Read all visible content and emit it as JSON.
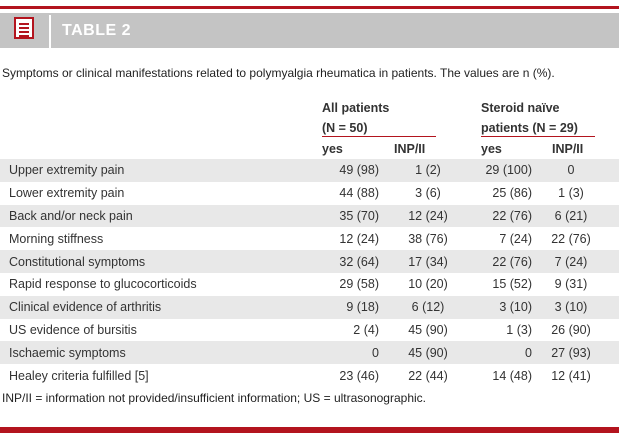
{
  "title": "TABLE 2",
  "caption": "Symptoms or clinical manifestations related to polymyalgia rheumatica in patients. The values are n (%).",
  "groups": [
    {
      "line1": "All patients",
      "line2": "(N = 50)"
    },
    {
      "line1": "Steroid naïve",
      "line2": "patients (N = 29)"
    }
  ],
  "subheaders": {
    "yes": "yes",
    "inp": "INP/II"
  },
  "rows": [
    {
      "label": "Upper extremity pain",
      "all_yes": "49 (98)",
      "all_inp": "1 (2)",
      "sn_yes": "29 (100)",
      "sn_inp": "0"
    },
    {
      "label": "Lower extremity pain",
      "all_yes": "44 (88)",
      "all_inp": "3 (6)",
      "sn_yes": "25 (86)",
      "sn_inp": "1 (3)"
    },
    {
      "label": "Back and/or neck pain",
      "all_yes": "35 (70)",
      "all_inp": "12 (24)",
      "sn_yes": "22 (76)",
      "sn_inp": "6 (21)"
    },
    {
      "label": "Morning stiffness",
      "all_yes": "12 (24)",
      "all_inp": "38 (76)",
      "sn_yes": "7 (24)",
      "sn_inp": "22 (76)"
    },
    {
      "label": "Constitutional symptoms",
      "all_yes": "32 (64)",
      "all_inp": "17 (34)",
      "sn_yes": "22 (76)",
      "sn_inp": "7 (24)"
    },
    {
      "label": "Rapid response to glucocorticoids",
      "all_yes": "29 (58)",
      "all_inp": "10 (20)",
      "sn_yes": "15 (52)",
      "sn_inp": "9 (31)"
    },
    {
      "label": "Clinical evidence of arthritis",
      "all_yes": "9 (18)",
      "all_inp": "6 (12)",
      "sn_yes": "3 (10)",
      "sn_inp": "3 (10)"
    },
    {
      "label": "US evidence of bursitis",
      "all_yes": "2 (4)",
      "all_inp": "45 (90)",
      "sn_yes": "1 (3)",
      "sn_inp": "26 (90)"
    },
    {
      "label": "Ischaemic symptoms",
      "all_yes": "0",
      "all_inp": "45 (90)",
      "sn_yes": "0",
      "sn_inp": "27 (93)"
    },
    {
      "label": "Healey criteria fulfilled [5]",
      "all_yes": "23 (46)",
      "all_inp": "22 (44)",
      "sn_yes": "14 (48)",
      "sn_inp": "12 (41)"
    }
  ],
  "footnote": "INP/II = information not provided/insufficient information; US = ultrasonographic.",
  "colors": {
    "accent": "#b3141e",
    "title_bar": "#c4c4c4",
    "row_shade": "#e8e8e8"
  }
}
